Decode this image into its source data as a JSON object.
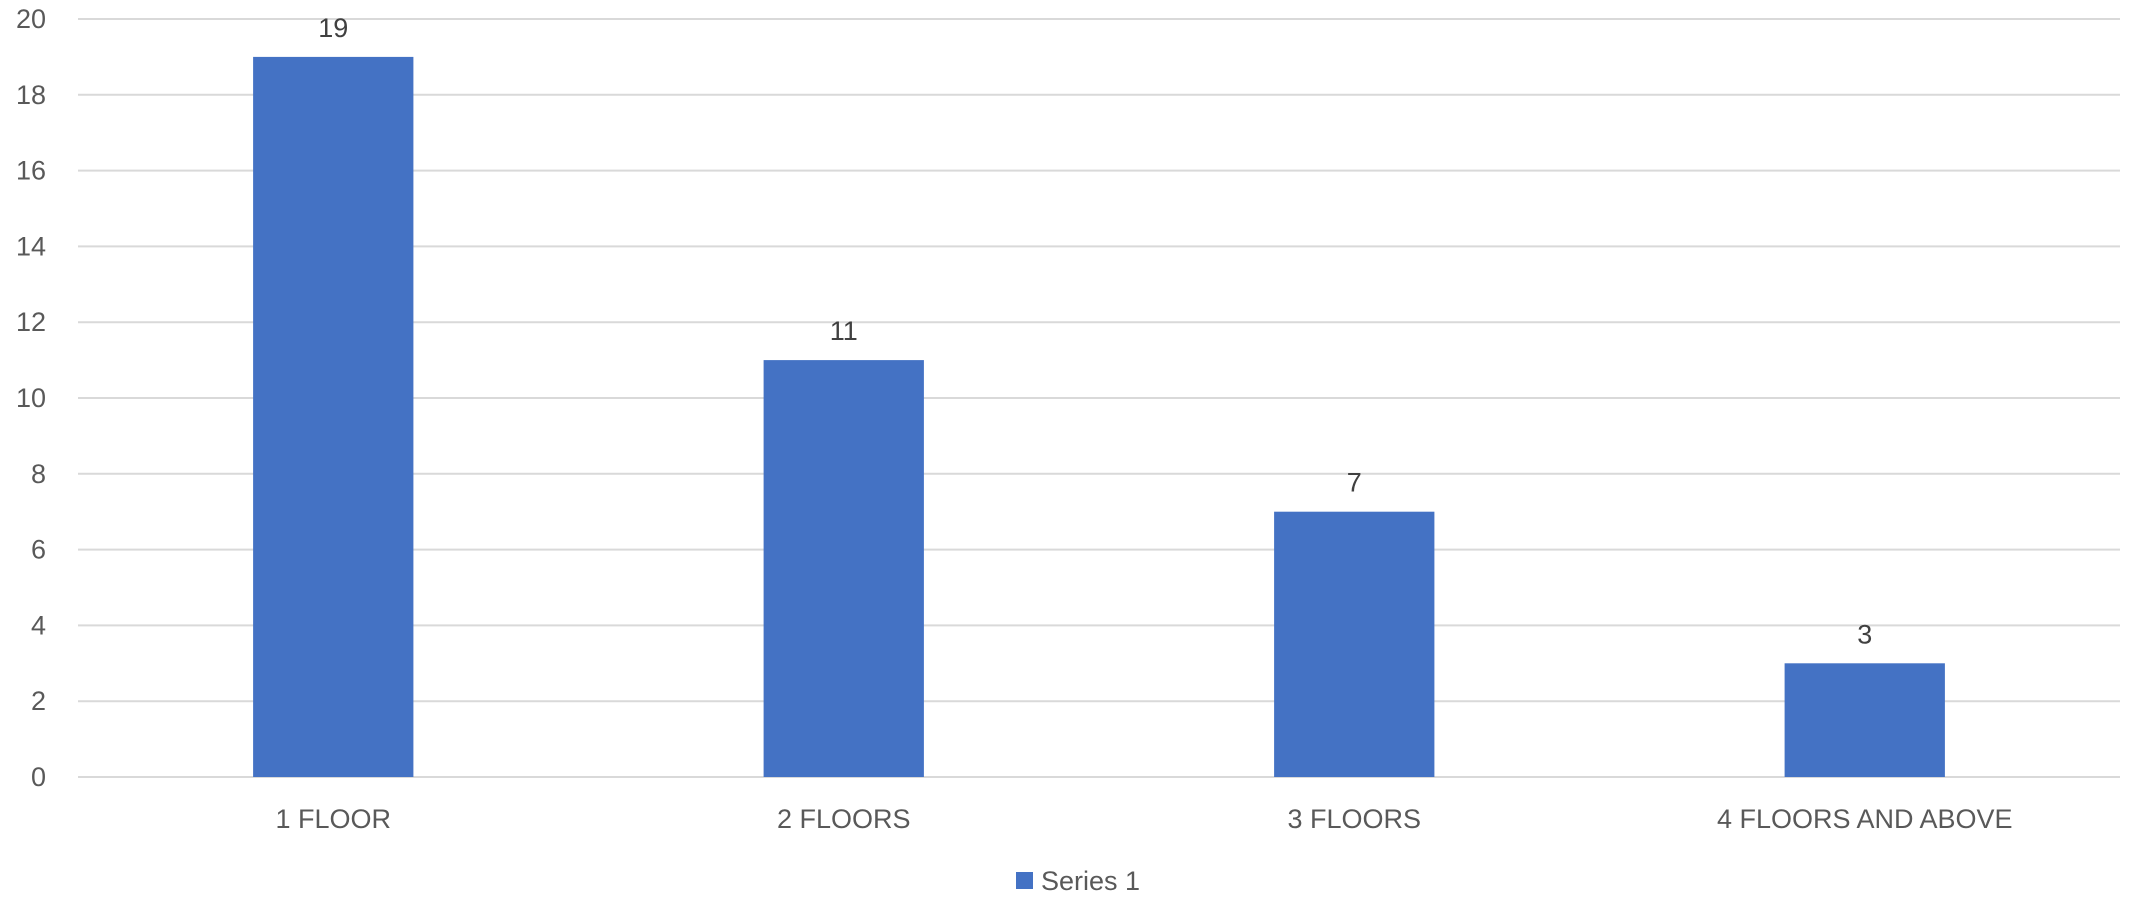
{
  "chart_data": {
    "type": "bar",
    "categories": [
      "1 FLOOR",
      "2 FLOORS",
      "3 FLOORS",
      "4 FLOORS AND ABOVE"
    ],
    "series": [
      {
        "name": "Series 1",
        "values": [
          19,
          11,
          7,
          3
        ],
        "color": "#4472C4"
      }
    ],
    "title": "",
    "xlabel": "",
    "ylabel": "",
    "ylim": [
      0,
      20
    ],
    "yticks": [
      "0",
      "2",
      "4",
      "6",
      "8",
      "10",
      "12",
      "14",
      "16",
      "18",
      "20"
    ],
    "data_labels": [
      "19",
      "11",
      "7",
      "3"
    ],
    "grid": true,
    "legend": "bottom",
    "colors": {
      "bar": "#4472C4",
      "grid": "#D9D9D9",
      "axis_text": "#595959",
      "data_label_text": "#404040"
    }
  }
}
